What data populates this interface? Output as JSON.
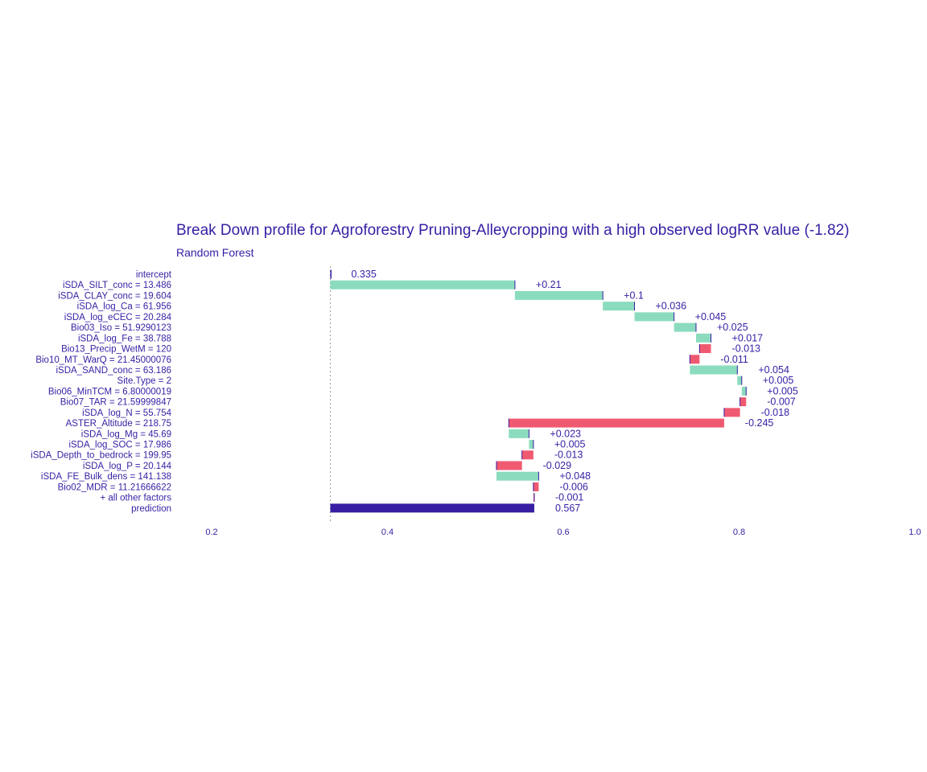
{
  "colors": {
    "text": "#371ea3",
    "positive": "#8bdcbe",
    "negative": "#f05a71",
    "prediction": "#371ea3",
    "baseline": "#9a9a9a"
  },
  "chart_data": {
    "type": "bar",
    "subtype": "break-down waterfall",
    "title": "Break Down profile for Agroforestry Pruning-Alleycropping with a high observed logRR value (-1.82)",
    "subtitle": "Random Forest",
    "xlim": [
      0.2,
      1.0
    ],
    "xticks": [
      0.2,
      0.4,
      0.6,
      0.8,
      1.0
    ],
    "xtick_labels": [
      "0.2",
      "0.4",
      "0.6",
      "0.8",
      "1.0"
    ],
    "baseline": 0.335,
    "grid": false,
    "legend": "none",
    "rows": [
      {
        "label": "intercept",
        "value": 0.335,
        "cumulative": 0.335,
        "text": "0.335",
        "sign": "intercept"
      },
      {
        "label": "iSDA_SILT_conc = 13.486",
        "value": 0.21,
        "cumulative": 0.545,
        "text": "+0.21",
        "sign": "positive"
      },
      {
        "label": "iSDA_CLAY_conc = 19.604",
        "value": 0.1,
        "cumulative": 0.645,
        "text": "+0.1",
        "sign": "positive"
      },
      {
        "label": "iSDA_log_Ca = 61.956",
        "value": 0.036,
        "cumulative": 0.681,
        "text": "+0.036",
        "sign": "positive"
      },
      {
        "label": "iSDA_log_eCEC = 20.284",
        "value": 0.045,
        "cumulative": 0.726,
        "text": "+0.045",
        "sign": "positive"
      },
      {
        "label": "Bio03_Iso = 51.9290123",
        "value": 0.025,
        "cumulative": 0.751,
        "text": "+0.025",
        "sign": "positive"
      },
      {
        "label": "iSDA_log_Fe = 38.788",
        "value": 0.017,
        "cumulative": 0.768,
        "text": "+0.017",
        "sign": "positive"
      },
      {
        "label": "Bio13_Precip_WetM = 120",
        "value": -0.013,
        "cumulative": 0.755,
        "text": "-0.013",
        "sign": "negative"
      },
      {
        "label": "Bio10_MT_WarQ = 21.45000076",
        "value": -0.011,
        "cumulative": 0.744,
        "text": "-0.011",
        "sign": "negative"
      },
      {
        "label": "iSDA_SAND_conc = 63.186",
        "value": 0.054,
        "cumulative": 0.798,
        "text": "+0.054",
        "sign": "positive"
      },
      {
        "label": "Site.Type = 2",
        "value": 0.005,
        "cumulative": 0.803,
        "text": "+0.005",
        "sign": "positive"
      },
      {
        "label": "Bio06_MinTCM = 6.80000019",
        "value": 0.005,
        "cumulative": 0.808,
        "text": "+0.005",
        "sign": "positive"
      },
      {
        "label": "Bio07_TAR = 21.59999847",
        "value": -0.007,
        "cumulative": 0.801,
        "text": "-0.007",
        "sign": "negative"
      },
      {
        "label": "iSDA_log_N = 55.754",
        "value": -0.018,
        "cumulative": 0.783,
        "text": "-0.018",
        "sign": "negative"
      },
      {
        "label": "ASTER_Altitude = 218.75",
        "value": -0.245,
        "cumulative": 0.538,
        "text": "-0.245",
        "sign": "negative"
      },
      {
        "label": "iSDA_log_Mg = 45.69",
        "value": 0.023,
        "cumulative": 0.561,
        "text": "+0.023",
        "sign": "positive"
      },
      {
        "label": "iSDA_log_SOC = 17.986",
        "value": 0.005,
        "cumulative": 0.566,
        "text": "+0.005",
        "sign": "positive"
      },
      {
        "label": "iSDA_Depth_to_bedrock = 199.95",
        "value": -0.013,
        "cumulative": 0.553,
        "text": "-0.013",
        "sign": "negative"
      },
      {
        "label": "iSDA_log_P = 20.144",
        "value": -0.029,
        "cumulative": 0.524,
        "text": "-0.029",
        "sign": "negative"
      },
      {
        "label": "iSDA_FE_Bulk_dens = 141.138",
        "value": 0.048,
        "cumulative": 0.572,
        "text": "+0.048",
        "sign": "positive"
      },
      {
        "label": "Bio02_MDR = 11.21666622",
        "value": -0.006,
        "cumulative": 0.566,
        "text": "-0.006",
        "sign": "negative"
      },
      {
        "label": "+ all other factors",
        "value": -0.001,
        "cumulative": 0.567,
        "text": "-0.001",
        "sign": "negative"
      },
      {
        "label": "prediction",
        "value": 0.567,
        "cumulative": 0.567,
        "text": "0.567",
        "sign": "prediction"
      }
    ]
  }
}
